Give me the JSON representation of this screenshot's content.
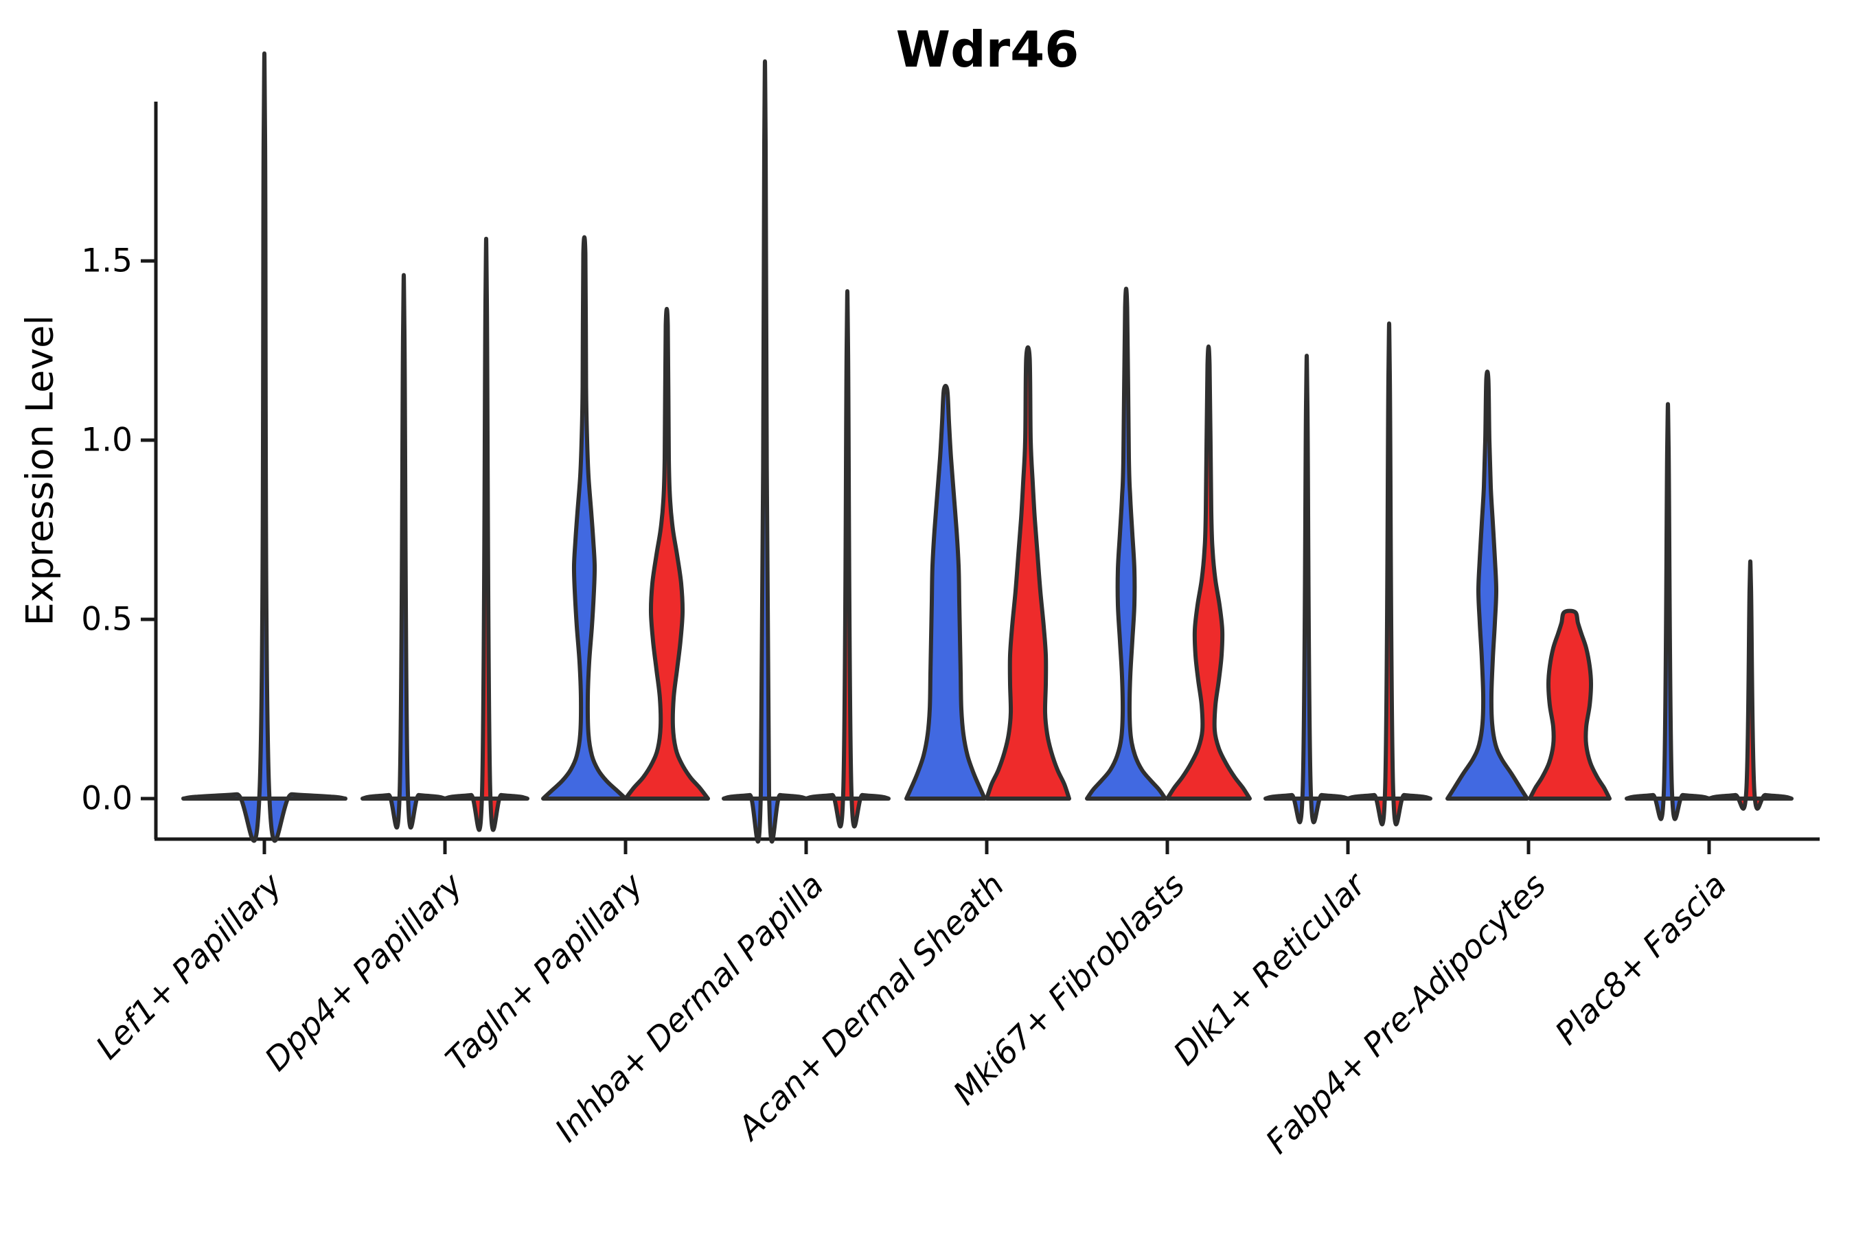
{
  "title": "Wdr46",
  "y_axis": {
    "label": "Expression Level",
    "tick_labels": [
      "0.0",
      "0.5",
      "1.0",
      "1.5"
    ]
  },
  "x_axis": {
    "tick_labels": [
      "Lef1+ Papillary",
      "Dpp4+ Papillary",
      "Tagln+ Papillary",
      "Inhba+ Dermal Papilla",
      "Acan+ Dermal Sheath",
      "Mki67+ Fibroblasts",
      "Dlk1+ Reticular",
      "Fabp4+ Pre-Adipocytes",
      "Plac8+ Fascia"
    ]
  },
  "colors": {
    "blue_violin": "#4169e1",
    "red_violin": "#ee2b2b",
    "outline": "#2f2f2f",
    "axis": "#1a1a1a",
    "background": "#ffffff",
    "text": "#000000"
  },
  "chart_data": {
    "type": "violin",
    "title": "Wdr46",
    "ylabel": "Expression Level",
    "xlabel": "",
    "ylim": [
      -0.11,
      1.94
    ],
    "yticks": [
      0,
      0.5,
      1.0,
      1.5
    ],
    "grid": false,
    "legend": "none",
    "split_colors": {
      "left": "#4169e1",
      "right": "#ee2b2b"
    },
    "categories": [
      "Lef1+ Papillary",
      "Dpp4+ Papillary",
      "Tagln+ Papillary",
      "Inhba+ Dermal Papilla",
      "Acan+ Dermal Sheath",
      "Mki67+ Fibroblasts",
      "Dlk1+ Reticular",
      "Fabp4+ Pre-Adipocytes",
      "Plac8+ Fascia"
    ],
    "max_expression": {
      "Lef1+ Papillary": [
        1.85
      ],
      "Dpp4+ Papillary": [
        1.3,
        1.39
      ],
      "Tagln+ Papillary": [
        1.52,
        1.32
      ],
      "Inhba+ Dermal Papilla": [
        1.83,
        1.26
      ],
      "Acan+ Dermal Sheath": [
        1.14,
        1.23
      ],
      "Mki67+ Fibroblasts": [
        1.37,
        1.21
      ],
      "Dlk1+ Reticular": [
        1.1,
        1.18
      ],
      "Fabp4+ Pre-Adipocytes": [
        1.17,
        0.52
      ],
      "Plac8+ Fascia": [
        0.98,
        0.59
      ]
    },
    "groups": [
      {
        "category": "Lef1+ Papillary",
        "violins": [
          {
            "side": "center",
            "color": "#4169e1",
            "max": 1.85,
            "shape": "spike",
            "profile": [
              [
                0,
                118
              ],
              [
                0.005,
                100
              ],
              [
                0.012,
                40
              ],
              [
                0.02,
                7
              ],
              [
                1.85,
                1
              ]
            ]
          }
        ]
      },
      {
        "category": "Dpp4+ Papillary",
        "violins": [
          {
            "side": "left",
            "color": "#4169e1",
            "max": 1.3,
            "shape": "spike",
            "profile": [
              [
                0,
                60
              ],
              [
                0.005,
                50
              ],
              [
                0.01,
                22
              ],
              [
                0.016,
                6
              ],
              [
                1.3,
                1
              ]
            ]
          },
          {
            "side": "right",
            "color": "#ee2b2b",
            "max": 1.39,
            "shape": "spike",
            "profile": [
              [
                0,
                60
              ],
              [
                0.005,
                50
              ],
              [
                0.01,
                22
              ],
              [
                0.016,
                6
              ],
              [
                1.39,
                1
              ]
            ]
          }
        ]
      },
      {
        "category": "Tagln+ Papillary",
        "violins": [
          {
            "side": "left",
            "color": "#4169e1",
            "max": 1.52,
            "shape": "body",
            "profile": [
              [
                0,
                60
              ],
              [
                0.025,
                46
              ],
              [
                0.05,
                32
              ],
              [
                0.08,
                20
              ],
              [
                0.12,
                11
              ],
              [
                0.18,
                6
              ],
              [
                0.28,
                5
              ],
              [
                0.38,
                7
              ],
              [
                0.48,
                11
              ],
              [
                0.58,
                14
              ],
              [
                0.65,
                15
              ],
              [
                0.72,
                13
              ],
              [
                0.8,
                10
              ],
              [
                0.9,
                6
              ],
              [
                1.0,
                4
              ],
              [
                1.15,
                2.5
              ],
              [
                1.52,
                1.5
              ]
            ]
          },
          {
            "side": "right",
            "color": "#ee2b2b",
            "max": 1.32,
            "shape": "body",
            "profile": [
              [
                0,
                60
              ],
              [
                0.03,
                48
              ],
              [
                0.06,
                34
              ],
              [
                0.1,
                21
              ],
              [
                0.14,
                13
              ],
              [
                0.2,
                9
              ],
              [
                0.28,
                10
              ],
              [
                0.36,
                15
              ],
              [
                0.44,
                20
              ],
              [
                0.52,
                23
              ],
              [
                0.6,
                21
              ],
              [
                0.68,
                15
              ],
              [
                0.75,
                9
              ],
              [
                0.83,
                5
              ],
              [
                0.95,
                3
              ],
              [
                1.32,
                1.5
              ]
            ]
          }
        ]
      },
      {
        "category": "Inhba+ Dermal Papilla",
        "violins": [
          {
            "side": "left",
            "color": "#4169e1",
            "max": 1.83,
            "shape": "spike",
            "profile": [
              [
                0,
                60
              ],
              [
                0.005,
                50
              ],
              [
                0.01,
                22
              ],
              [
                0.016,
                6
              ],
              [
                1.83,
                1
              ]
            ]
          },
          {
            "side": "right",
            "color": "#ee2b2b",
            "max": 1.26,
            "shape": "spike",
            "profile": [
              [
                0,
                60
              ],
              [
                0.005,
                50
              ],
              [
                0.01,
                22
              ],
              [
                0.016,
                6
              ],
              [
                1.26,
                1
              ]
            ]
          }
        ]
      },
      {
        "category": "Acan+ Dermal Sheath",
        "violins": [
          {
            "side": "left",
            "color": "#4169e1",
            "max": 1.14,
            "shape": "body",
            "profile": [
              [
                0,
                57
              ],
              [
                0.03,
                50
              ],
              [
                0.07,
                41
              ],
              [
                0.12,
                32
              ],
              [
                0.18,
                26
              ],
              [
                0.25,
                23
              ],
              [
                0.35,
                22
              ],
              [
                0.45,
                21
              ],
              [
                0.55,
                20
              ],
              [
                0.65,
                19
              ],
              [
                0.75,
                16
              ],
              [
                0.85,
                12
              ],
              [
                0.95,
                8
              ],
              [
                1.05,
                5
              ],
              [
                1.14,
                2.5
              ]
            ]
          },
          {
            "side": "right",
            "color": "#ee2b2b",
            "max": 1.23,
            "shape": "body",
            "profile": [
              [
                0,
                60
              ],
              [
                0.04,
                53
              ],
              [
                0.08,
                43
              ],
              [
                0.13,
                34
              ],
              [
                0.18,
                28
              ],
              [
                0.24,
                25
              ],
              [
                0.32,
                26
              ],
              [
                0.4,
                26
              ],
              [
                0.48,
                23
              ],
              [
                0.58,
                18
              ],
              [
                0.68,
                14
              ],
              [
                0.78,
                10
              ],
              [
                0.88,
                7
              ],
              [
                1.0,
                4
              ],
              [
                1.23,
                2.5
              ]
            ]
          }
        ]
      },
      {
        "category": "Mki67+ Fibroblasts",
        "violins": [
          {
            "side": "left",
            "color": "#4169e1",
            "max": 1.37,
            "shape": "body",
            "profile": [
              [
                0,
                57
              ],
              [
                0.025,
                48
              ],
              [
                0.05,
                36
              ],
              [
                0.08,
                23
              ],
              [
                0.12,
                13
              ],
              [
                0.17,
                7
              ],
              [
                0.24,
                5
              ],
              [
                0.34,
                6
              ],
              [
                0.44,
                9
              ],
              [
                0.54,
                12
              ],
              [
                0.64,
                12
              ],
              [
                0.74,
                9
              ],
              [
                0.84,
                6
              ],
              [
                0.95,
                4
              ],
              [
                1.37,
                1.5
              ]
            ]
          },
          {
            "side": "right",
            "color": "#ee2b2b",
            "max": 1.21,
            "shape": "body",
            "profile": [
              [
                0,
                60
              ],
              [
                0.03,
                50
              ],
              [
                0.06,
                38
              ],
              [
                0.1,
                25
              ],
              [
                0.14,
                15
              ],
              [
                0.19,
                9
              ],
              [
                0.26,
                10
              ],
              [
                0.33,
                15
              ],
              [
                0.4,
                19
              ],
              [
                0.47,
                20
              ],
              [
                0.54,
                16
              ],
              [
                0.61,
                10
              ],
              [
                0.69,
                6
              ],
              [
                0.8,
                4
              ],
              [
                1.21,
                1.5
              ]
            ]
          }
        ]
      },
      {
        "category": "Dlk1+ Reticular",
        "violins": [
          {
            "side": "left",
            "color": "#4169e1",
            "max": 1.1,
            "shape": "spike",
            "profile": [
              [
                0,
                60
              ],
              [
                0.005,
                50
              ],
              [
                0.01,
                22
              ],
              [
                0.016,
                6
              ],
              [
                1.1,
                1
              ]
            ]
          },
          {
            "side": "right",
            "color": "#ee2b2b",
            "max": 1.18,
            "shape": "spike",
            "profile": [
              [
                0,
                60
              ],
              [
                0.005,
                50
              ],
              [
                0.01,
                22
              ],
              [
                0.016,
                6
              ],
              [
                1.18,
                1
              ]
            ]
          }
        ]
      },
      {
        "category": "Fabp4+ Pre-Adipocytes",
        "violins": [
          {
            "side": "left",
            "color": "#4169e1",
            "max": 1.17,
            "shape": "body",
            "profile": [
              [
                0,
                58
              ],
              [
                0.03,
                48
              ],
              [
                0.07,
                35
              ],
              [
                0.11,
                21
              ],
              [
                0.15,
                12
              ],
              [
                0.21,
                7
              ],
              [
                0.29,
                6
              ],
              [
                0.39,
                8
              ],
              [
                0.49,
                11
              ],
              [
                0.58,
                13
              ],
              [
                0.67,
                11
              ],
              [
                0.77,
                8
              ],
              [
                0.87,
                5
              ],
              [
                1.0,
                3
              ],
              [
                1.17,
                1.5
              ]
            ]
          },
          {
            "side": "right",
            "color": "#ee2b2b",
            "max": 0.52,
            "shape": "blunt",
            "profile": [
              [
                0,
                58
              ],
              [
                0.03,
                50
              ],
              [
                0.06,
                40
              ],
              [
                0.1,
                30
              ],
              [
                0.15,
                24
              ],
              [
                0.2,
                24
              ],
              [
                0.26,
                29
              ],
              [
                0.32,
                31
              ],
              [
                0.37,
                29
              ],
              [
                0.42,
                24
              ],
              [
                0.46,
                17
              ],
              [
                0.49,
                12
              ],
              [
                0.52,
                8
              ]
            ]
          }
        ]
      },
      {
        "category": "Plac8+ Fascia",
        "violins": [
          {
            "side": "left",
            "color": "#4169e1",
            "max": 0.98,
            "shape": "spike",
            "profile": [
              [
                0,
                60
              ],
              [
                0.005,
                50
              ],
              [
                0.01,
                22
              ],
              [
                0.016,
                6
              ],
              [
                0.98,
                1
              ]
            ]
          },
          {
            "side": "right",
            "color": "#ee2b2b",
            "max": 0.59,
            "shape": "spike",
            "profile": [
              [
                0,
                60
              ],
              [
                0.005,
                50
              ],
              [
                0.01,
                22
              ],
              [
                0.016,
                6
              ],
              [
                0.59,
                1
              ]
            ]
          }
        ]
      }
    ]
  }
}
